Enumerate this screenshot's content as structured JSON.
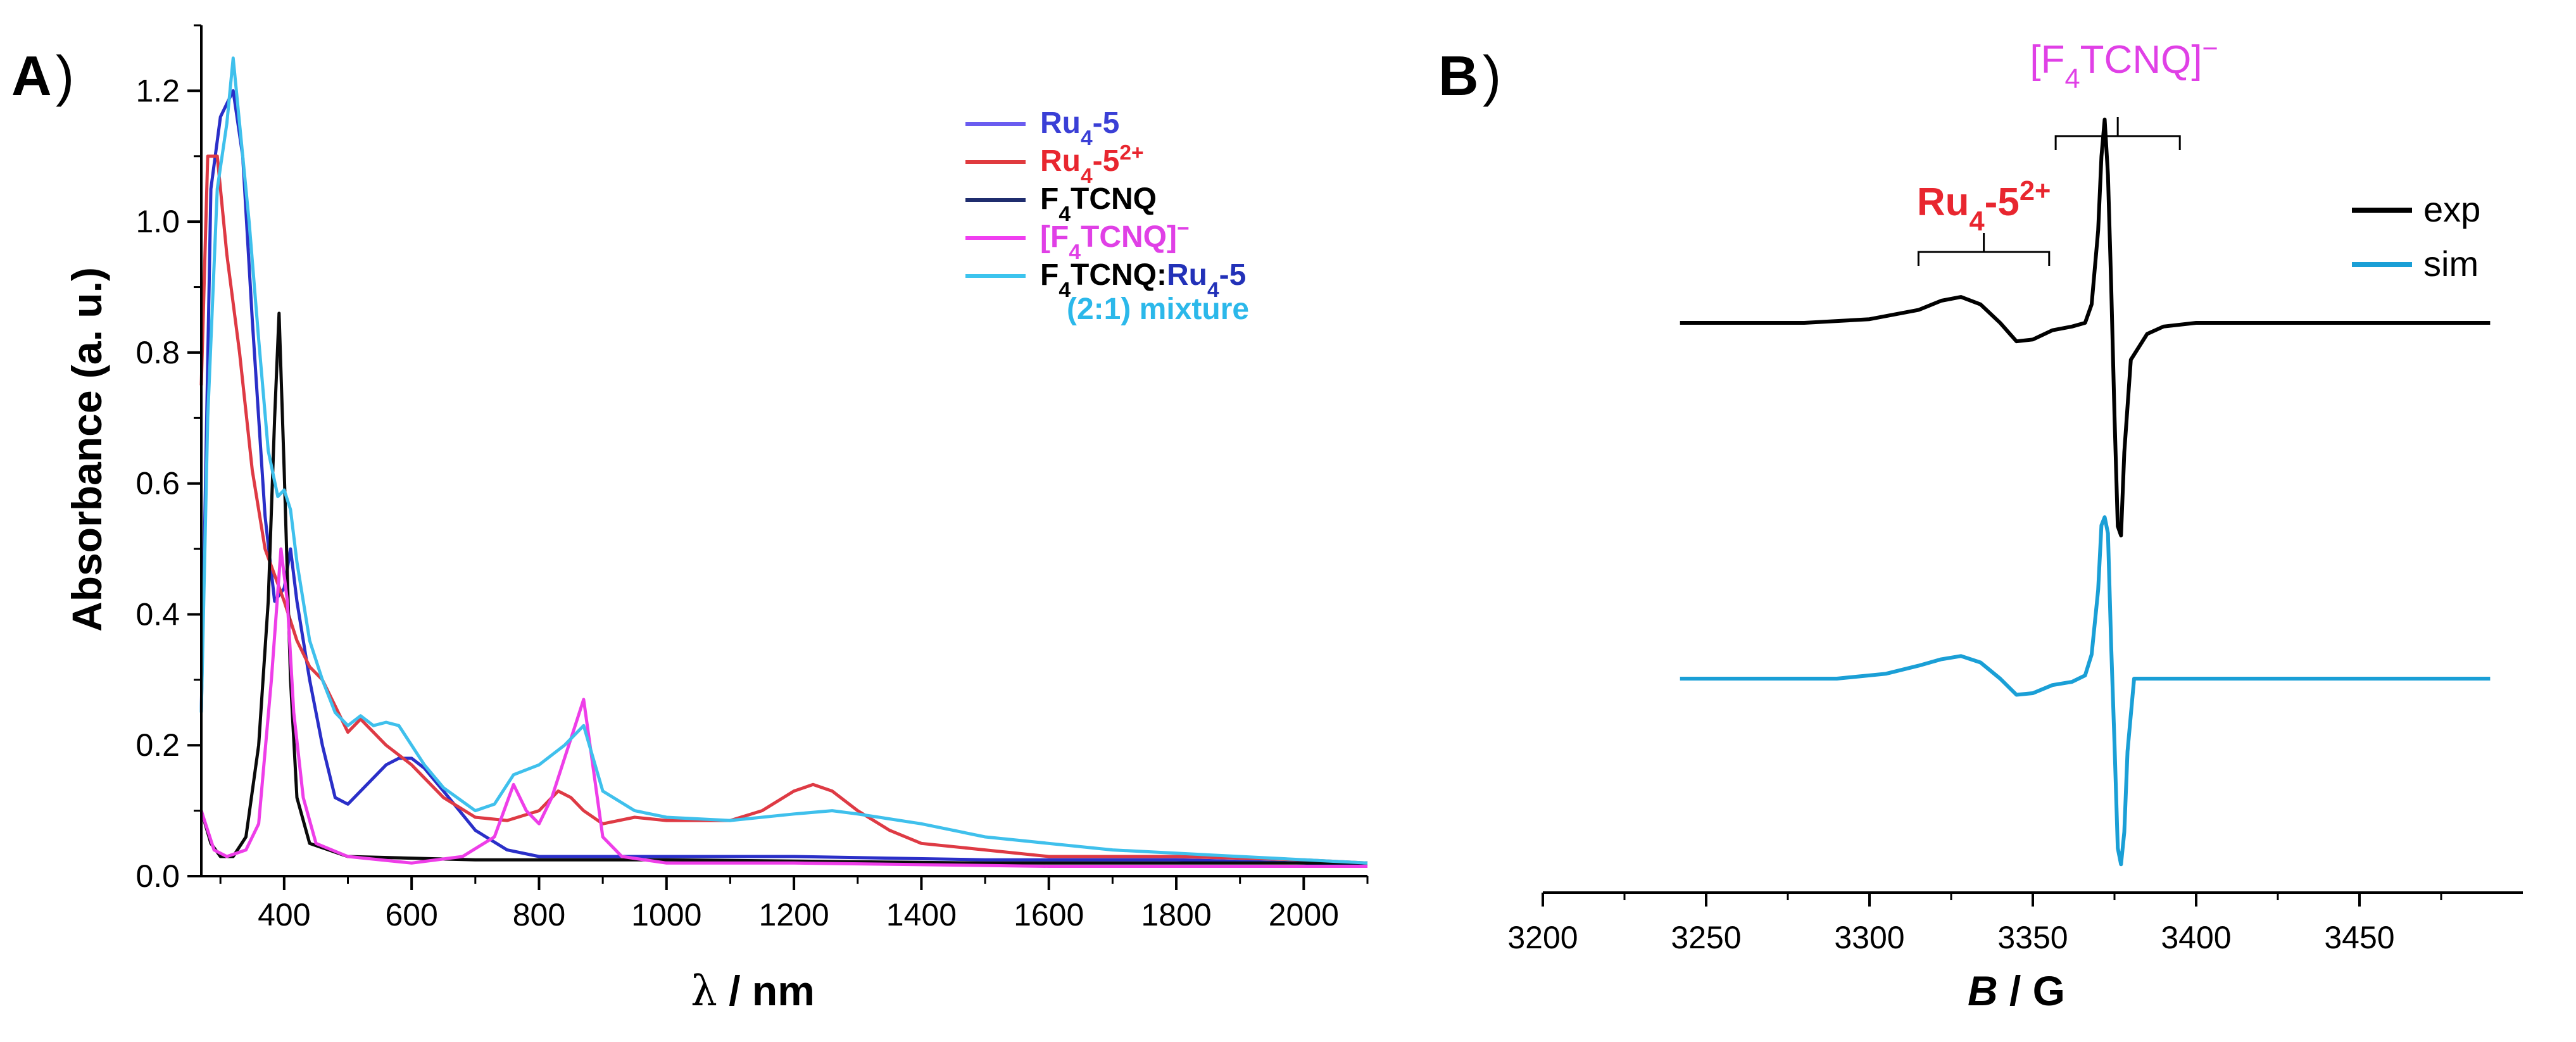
{
  "panels": {
    "a": {
      "letter": "A",
      "paren": ")"
    },
    "b": {
      "letter": "B",
      "paren": ")"
    }
  },
  "chart_data": [
    {
      "panel": "A",
      "type": "line",
      "xlabel_symbol": "λ",
      "xlabel_unit": " / nm",
      "ylabel": "Absorbance (a. u.)",
      "xlim": [
        270,
        2100
      ],
      "ylim": [
        0,
        1.3
      ],
      "xticks": [
        400,
        600,
        800,
        1000,
        1200,
        1400,
        1600,
        1800,
        2000
      ],
      "yticks": [
        0.0,
        0.2,
        0.4,
        0.6,
        0.8,
        1.0,
        1.2
      ],
      "ytick_labels": [
        "0.0",
        "0.2",
        "0.4",
        "0.6",
        "0.8",
        "1.0",
        "1.2"
      ],
      "legend_position": "top-right",
      "legend": [
        {
          "parts": [
            {
              "t": "Ru",
              "c": "#3a3fd6"
            },
            {
              "t": "4",
              "c": "#3a3fd6",
              "sub": true
            },
            {
              "t": "-5",
              "c": "#3a3fd6"
            }
          ],
          "line_color": "#6a5cf0"
        },
        {
          "parts": [
            {
              "t": "Ru",
              "c": "#e8262f"
            },
            {
              "t": "4",
              "c": "#e8262f",
              "sub": true
            },
            {
              "t": "-5",
              "c": "#e8262f"
            },
            {
              "t": "2+",
              "c": "#e8262f",
              "sup": true
            }
          ],
          "line_color": "#e03a3e"
        },
        {
          "parts": [
            {
              "t": "F",
              "c": "#000000"
            },
            {
              "t": "4",
              "c": "#000000",
              "sub": true
            },
            {
              "t": "TCNQ",
              "c": "#000000"
            }
          ],
          "line_color": "#1f2d6e"
        },
        {
          "parts": [
            {
              "t": "[F",
              "c": "#e040e6"
            },
            {
              "t": "4",
              "c": "#e040e6",
              "sub": true
            },
            {
              "t": "TCNQ]",
              "c": "#e040e6"
            },
            {
              "t": "−",
              "c": "#e040e6",
              "sup": true
            }
          ],
          "line_color": "#f03ef0"
        },
        {
          "parts": [
            {
              "t": "F",
              "c": "#000000"
            },
            {
              "t": "4",
              "c": "#000000",
              "sub": true
            },
            {
              "t": "TCNQ:",
              "c": "#000000"
            },
            {
              "t": "Ru",
              "c": "#2231b8"
            },
            {
              "t": "4",
              "c": "#2231b8",
              "sub": true
            },
            {
              "t": "-5",
              "c": "#2231b8"
            }
          ],
          "line_color": "#3cc4ee"
        },
        {
          "parts": [
            {
              "t": "(2:1) mixture",
              "c": "#2bb8ea"
            }
          ],
          "line_color": null
        }
      ],
      "series": [
        {
          "name": "Ru4-5",
          "color": "#2a2fc8",
          "x": [
            270,
            285,
            300,
            320,
            335,
            350,
            370,
            385,
            400,
            410,
            420,
            440,
            460,
            480,
            500,
            520,
            540,
            560,
            580,
            600,
            620,
            650,
            700,
            750,
            800,
            900,
            1000,
            1200,
            1500,
            1800,
            2000,
            2100
          ],
          "y": [
            0.25,
            1.05,
            1.16,
            1.2,
            1.1,
            0.85,
            0.55,
            0.42,
            0.44,
            0.5,
            0.42,
            0.3,
            0.2,
            0.12,
            0.11,
            0.13,
            0.15,
            0.17,
            0.18,
            0.18,
            0.165,
            0.13,
            0.07,
            0.04,
            0.03,
            0.03,
            0.03,
            0.03,
            0.025,
            0.025,
            0.02,
            0.015
          ]
        },
        {
          "name": "Ru4-5 2+",
          "color": "#de3a44",
          "x": [
            270,
            280,
            295,
            310,
            330,
            350,
            370,
            385,
            400,
            420,
            440,
            460,
            480,
            500,
            520,
            540,
            560,
            600,
            650,
            700,
            750,
            800,
            830,
            850,
            870,
            900,
            950,
            1000,
            1100,
            1150,
            1200,
            1230,
            1260,
            1300,
            1350,
            1400,
            1500,
            1600,
            1800,
            2000,
            2100
          ],
          "y": [
            0.75,
            1.1,
            1.1,
            0.95,
            0.8,
            0.62,
            0.5,
            0.46,
            0.42,
            0.36,
            0.32,
            0.3,
            0.26,
            0.22,
            0.24,
            0.22,
            0.2,
            0.17,
            0.12,
            0.09,
            0.085,
            0.1,
            0.13,
            0.12,
            0.1,
            0.08,
            0.09,
            0.085,
            0.085,
            0.1,
            0.13,
            0.14,
            0.13,
            0.1,
            0.07,
            0.05,
            0.04,
            0.03,
            0.03,
            0.025,
            0.02
          ]
        },
        {
          "name": "F4TCNQ",
          "color": "#0a0a0a",
          "x": [
            270,
            285,
            300,
            320,
            340,
            360,
            375,
            385,
            392,
            400,
            410,
            420,
            440,
            500,
            700,
            1000,
            1500,
            2000,
            2100
          ],
          "y": [
            0.1,
            0.05,
            0.03,
            0.03,
            0.06,
            0.2,
            0.42,
            0.7,
            0.86,
            0.62,
            0.3,
            0.12,
            0.05,
            0.03,
            0.025,
            0.025,
            0.02,
            0.02,
            0.02
          ]
        },
        {
          "name": "[F4TCNQ]-",
          "color": "#ee3ee8",
          "x": [
            270,
            290,
            310,
            340,
            360,
            380,
            395,
            405,
            415,
            430,
            450,
            500,
            600,
            680,
            730,
            760,
            780,
            800,
            820,
            840,
            860,
            870,
            880,
            900,
            930,
            1000,
            1200,
            1600,
            2100
          ],
          "y": [
            0.1,
            0.04,
            0.03,
            0.04,
            0.08,
            0.3,
            0.5,
            0.42,
            0.25,
            0.12,
            0.05,
            0.03,
            0.02,
            0.03,
            0.06,
            0.14,
            0.1,
            0.08,
            0.12,
            0.18,
            0.24,
            0.27,
            0.2,
            0.06,
            0.03,
            0.02,
            0.02,
            0.015,
            0.015
          ]
        },
        {
          "name": "F4TCNQ:Ru4-5 (2:1) mixture",
          "color": "#3fc0ec",
          "x": [
            270,
            280,
            295,
            310,
            320,
            330,
            345,
            360,
            375,
            390,
            400,
            410,
            420,
            440,
            460,
            480,
            500,
            520,
            540,
            560,
            580,
            600,
            620,
            650,
            700,
            730,
            760,
            800,
            840,
            870,
            900,
            950,
            1000,
            1100,
            1200,
            1260,
            1300,
            1400,
            1500,
            1700,
            1900,
            2100
          ],
          "y": [
            0.25,
            0.7,
            1.05,
            1.15,
            1.25,
            1.15,
            1.0,
            0.82,
            0.65,
            0.58,
            0.59,
            0.56,
            0.48,
            0.36,
            0.3,
            0.25,
            0.23,
            0.245,
            0.23,
            0.235,
            0.23,
            0.2,
            0.17,
            0.135,
            0.1,
            0.11,
            0.155,
            0.17,
            0.2,
            0.23,
            0.13,
            0.1,
            0.09,
            0.085,
            0.095,
            0.1,
            0.095,
            0.08,
            0.06,
            0.04,
            0.03,
            0.02
          ]
        }
      ]
    },
    {
      "panel": "B",
      "type": "line",
      "xlabel_symbol": "B",
      "xlabel_unit": " / G",
      "xlim": [
        3200,
        3500
      ],
      "xticks": [
        3200,
        3250,
        3300,
        3350,
        3400,
        3450
      ],
      "legend_position": "top-right",
      "legend": [
        {
          "label": "exp",
          "color": "#000000"
        },
        {
          "label": "sim",
          "color": "#1a9fd6"
        }
      ],
      "annotations": [
        {
          "parts": [
            {
              "t": "Ru",
              "c": "#e8262f"
            },
            {
              "t": "4",
              "c": "#e8262f",
              "sub": true
            },
            {
              "t": "-5",
              "c": "#e8262f"
            },
            {
              "t": "2+",
              "c": "#e8262f",
              "sup": true
            }
          ],
          "bracket_x": [
            3315,
            3355
          ],
          "bold": true
        },
        {
          "parts": [
            {
              "t": "[F",
              "c": "#e040e6"
            },
            {
              "t": "4",
              "c": "#e040e6",
              "sub": true
            },
            {
              "t": "TCNQ]",
              "c": "#e040e6"
            },
            {
              "t": "−",
              "c": "#e040e6",
              "sup": true
            }
          ],
          "bracket_x": [
            3357,
            3395
          ],
          "bold": false
        }
      ],
      "series": [
        {
          "name": "exp",
          "color": "#000000",
          "baseline": 0.0,
          "x": [
            3242,
            3280,
            3300,
            3315,
            3322,
            3328,
            3334,
            3340,
            3345,
            3350,
            3356,
            3362,
            3366,
            3368,
            3370,
            3371,
            3372,
            3373,
            3374,
            3375,
            3376,
            3377,
            3378,
            3380,
            3385,
            3390,
            3400,
            3450,
            3490
          ],
          "y": [
            0.0,
            0.0,
            0.02,
            0.07,
            0.12,
            0.14,
            0.1,
            0.0,
            -0.1,
            -0.09,
            -0.04,
            -0.02,
            0.0,
            0.1,
            0.5,
            0.9,
            1.1,
            0.8,
            0.2,
            -0.5,
            -1.1,
            -1.15,
            -0.7,
            -0.2,
            -0.06,
            -0.02,
            0.0,
            0.0,
            0.0
          ]
        },
        {
          "name": "sim",
          "color": "#1a9fd6",
          "baseline": 0.0,
          "x": [
            3242,
            3290,
            3305,
            3315,
            3322,
            3328,
            3334,
            3340,
            3345,
            3350,
            3356,
            3362,
            3366,
            3368,
            3370,
            3371,
            3372,
            3373,
            3374,
            3375,
            3376,
            3377,
            3378,
            3379,
            3381,
            3490
          ],
          "y": [
            0.0,
            0.0,
            0.03,
            0.08,
            0.12,
            0.14,
            0.1,
            0.0,
            -0.1,
            -0.09,
            -0.04,
            -0.02,
            0.02,
            0.15,
            0.55,
            0.95,
            1.0,
            0.9,
            0.2,
            -0.4,
            -1.05,
            -1.15,
            -0.95,
            -0.45,
            0.0,
            0.0
          ]
        }
      ]
    }
  ]
}
